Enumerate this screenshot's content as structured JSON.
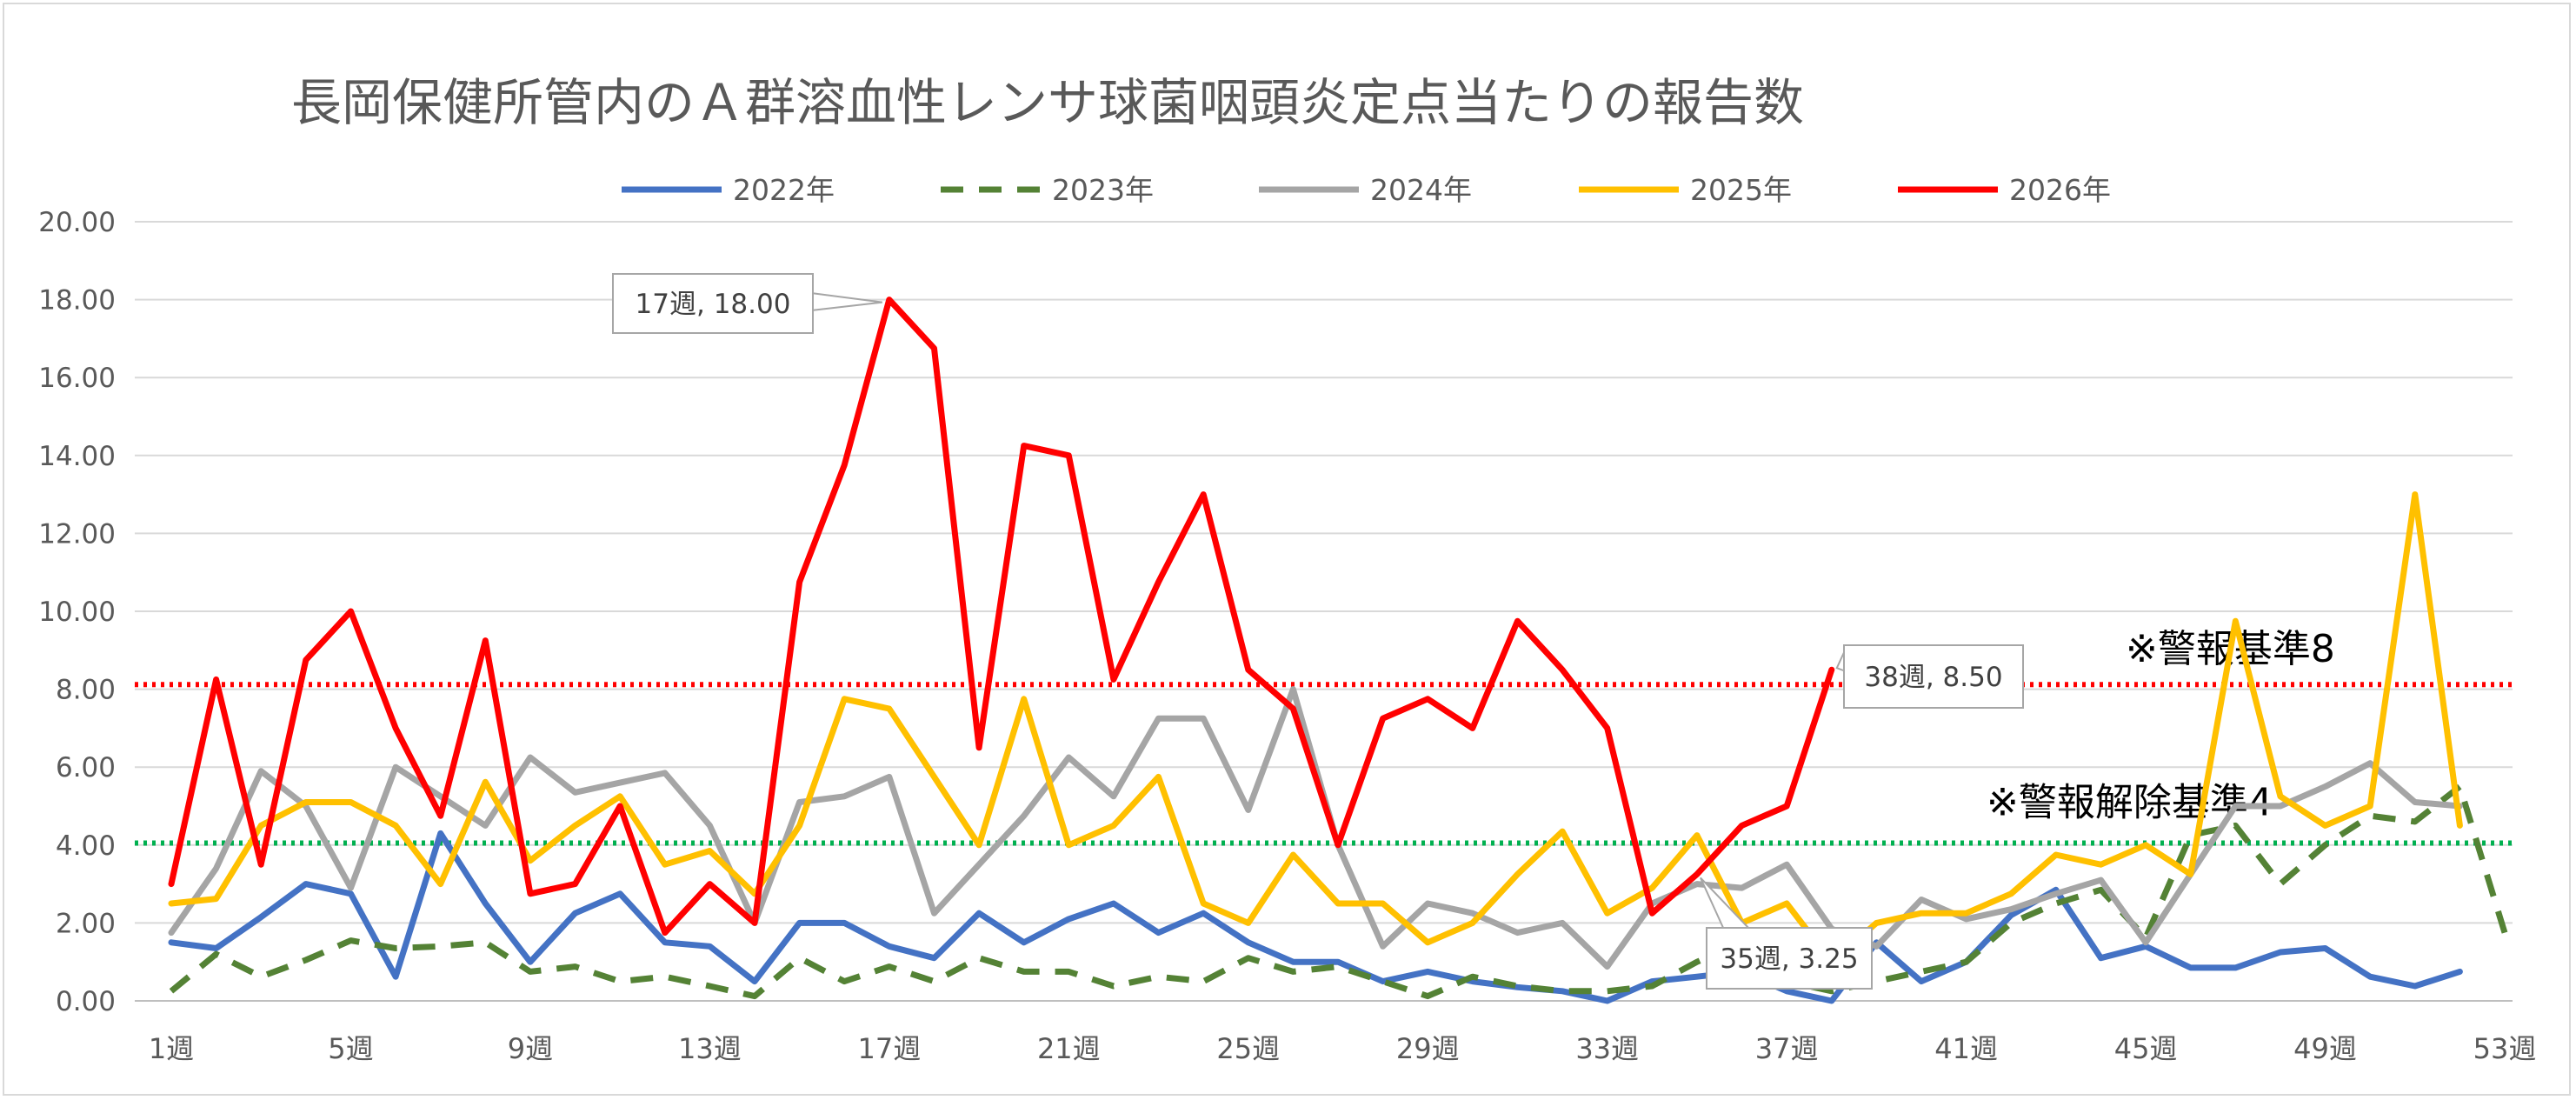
{
  "chart_data": {
    "type": "line",
    "title": "長岡保健所管内のＡ群溶血性レンサ球菌咽頭炎定点当たりの報告数",
    "xlabel": "",
    "ylabel": "",
    "ylim": [
      0,
      20
    ],
    "yticks": [
      "0.00",
      "2.00",
      "4.00",
      "6.00",
      "8.00",
      "10.00",
      "12.00",
      "14.00",
      "16.00",
      "18.00",
      "20.00"
    ],
    "xticks": [
      {
        "week": 1,
        "label": "1週"
      },
      {
        "week": 5,
        "label": "5週"
      },
      {
        "week": 9,
        "label": "9週"
      },
      {
        "week": 13,
        "label": "13週"
      },
      {
        "week": 17,
        "label": "17週"
      },
      {
        "week": 21,
        "label": "21週"
      },
      {
        "week": 25,
        "label": "25週"
      },
      {
        "week": 29,
        "label": "29週"
      },
      {
        "week": 33,
        "label": "33週"
      },
      {
        "week": 37,
        "label": "37週"
      },
      {
        "week": 41,
        "label": "41週"
      },
      {
        "week": 45,
        "label": "45週"
      },
      {
        "week": 49,
        "label": "49週"
      },
      {
        "week": 53,
        "label": "53週"
      }
    ],
    "grid": true,
    "legend_position": "top",
    "series": [
      {
        "name": "2022年",
        "color": "#4472c4",
        "dash": "solid",
        "values": [
          1.5,
          1.35,
          2.15,
          3.0,
          2.75,
          0.62,
          4.3,
          2.5,
          1.0,
          2.25,
          2.75,
          1.5,
          1.4,
          0.5,
          2.0,
          2.0,
          1.4,
          1.1,
          2.25,
          1.5,
          2.1,
          2.5,
          1.75,
          2.25,
          1.5,
          1.0,
          1.0,
          0.5,
          0.75,
          0.5,
          0.35,
          0.25,
          0.0,
          0.5,
          0.62,
          0.75,
          0.25,
          0.0,
          1.5,
          0.5,
          1.0,
          2.2,
          2.85,
          1.1,
          1.4,
          0.85,
          0.85,
          1.25,
          1.35,
          0.62,
          0.38,
          0.75
        ]
      },
      {
        "name": "2023年",
        "color": "#548235",
        "dash": "dashed",
        "values": [
          0.25,
          1.2,
          0.62,
          1.05,
          1.55,
          1.35,
          1.4,
          1.5,
          0.75,
          0.88,
          0.5,
          0.62,
          0.38,
          0.12,
          1.1,
          0.5,
          0.88,
          0.5,
          1.1,
          0.75,
          0.75,
          0.38,
          0.62,
          0.5,
          1.1,
          0.75,
          0.88,
          0.5,
          0.12,
          0.62,
          0.38,
          0.25,
          0.25,
          0.38,
          1.0,
          1.5,
          0.5,
          0.25,
          0.5,
          0.75,
          1.0,
          2.0,
          2.5,
          2.85,
          1.62,
          4.25,
          4.5,
          3.0,
          4.0,
          4.75,
          4.6,
          5.5,
          1.75
        ]
      },
      {
        "name": "2024年",
        "color": "#a5a5a5",
        "dash": "solid",
        "values": [
          1.75,
          3.4,
          5.9,
          5.0,
          2.9,
          6.0,
          5.25,
          4.5,
          6.25,
          5.35,
          5.6,
          5.85,
          4.5,
          2.0,
          5.1,
          5.25,
          5.75,
          2.25,
          3.5,
          4.75,
          6.25,
          5.25,
          7.25,
          7.25,
          4.9,
          8.0,
          4.0,
          1.4,
          2.5,
          2.25,
          1.75,
          2.0,
          0.88,
          2.5,
          3.0,
          2.9,
          3.5,
          1.85,
          1.4,
          2.6,
          2.1,
          2.35,
          2.75,
          3.1,
          1.5,
          3.25,
          5.0,
          5.0,
          5.5,
          6.1,
          5.1,
          5.0
        ]
      },
      {
        "name": "2025年",
        "color": "#ffc000",
        "dash": "solid",
        "values": [
          2.5,
          2.62,
          4.5,
          5.1,
          5.1,
          4.5,
          3.0,
          5.62,
          3.6,
          4.5,
          5.25,
          3.5,
          3.85,
          2.75,
          4.5,
          7.75,
          7.5,
          5.75,
          4.0,
          7.75,
          4.0,
          4.5,
          5.75,
          2.5,
          2.0,
          3.75,
          2.5,
          2.5,
          1.5,
          2.0,
          3.25,
          4.35,
          2.25,
          2.9,
          4.25,
          2.0,
          2.5,
          1.0,
          2.0,
          2.25,
          2.25,
          2.75,
          3.75,
          3.5,
          4.0,
          3.25,
          9.75,
          5.25,
          4.5,
          5.0,
          13.0,
          4.5
        ]
      },
      {
        "name": "2026年",
        "color": "#ff0000",
        "dash": "solid",
        "values": [
          3.0,
          8.25,
          3.5,
          8.75,
          10.0,
          7.0,
          4.75,
          9.25,
          2.75,
          3.0,
          5.0,
          1.75,
          3.0,
          2.0,
          10.75,
          13.75,
          18.0,
          16.75,
          6.5,
          14.25,
          14.0,
          8.25,
          10.75,
          13.0,
          8.5,
          7.5,
          4.0,
          7.25,
          7.75,
          7.0,
          9.75,
          8.5,
          7.0,
          2.25,
          3.25,
          4.5,
          5.0,
          8.5
        ]
      }
    ],
    "reference_lines": [
      {
        "value": 8.12,
        "color": "#ff0000",
        "label": "※警報基準8"
      },
      {
        "value": 4.05,
        "color": "#00b050",
        "label": "※警報解除基準4"
      }
    ],
    "annotations": [
      {
        "series": "2026年",
        "week": 17,
        "text": "17週, 18.00"
      },
      {
        "series": "2026年",
        "week": 35,
        "text": "35週, 3.25"
      },
      {
        "series": "2026年",
        "week": 38,
        "text": "38週, 8.50"
      }
    ]
  }
}
